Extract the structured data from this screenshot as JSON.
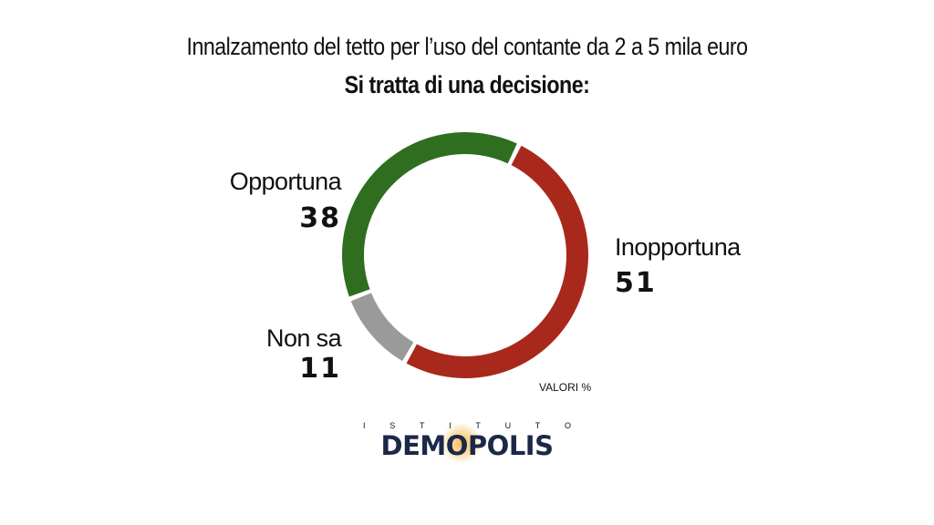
{
  "chart_data": {
    "type": "pie",
    "title": "Innalzamento del tetto per l’uso del contante da 2 a 5 mila euro",
    "subtitle": "Si tratta di una decisione:",
    "categories": [
      "Inopportuna",
      "Non sa",
      "Opportuna"
    ],
    "values": [
      51,
      11,
      38
    ],
    "colors": [
      "#a8291c",
      "#9a9a9a",
      "#2f6e1f"
    ],
    "style": "donut",
    "unit_note": "VALORI %"
  },
  "logo": {
    "top_text": "ISTITUTO",
    "top_letters": [
      "I",
      "S",
      "T",
      "I",
      "T",
      "U",
      "T",
      "O"
    ],
    "main_text": "DEMOPOLIS"
  }
}
